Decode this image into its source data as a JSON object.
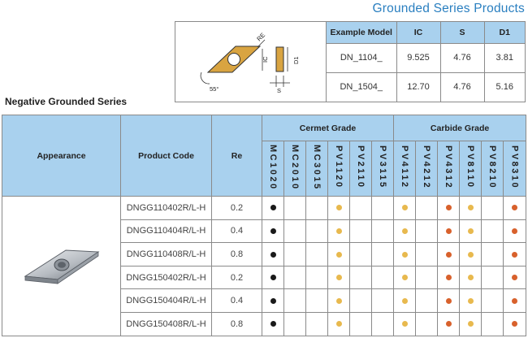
{
  "page_title": "Grounded Series Products",
  "section_heading": "Negative Grounded Series",
  "diagram": {
    "labels": [
      "RE",
      "IC",
      "D1",
      "S",
      "55°"
    ]
  },
  "spec_table": {
    "headers": [
      "Example Model",
      "IC",
      "S",
      "D1"
    ],
    "rows": [
      [
        "DN_1104_",
        "9.525",
        "4.76",
        "3.81"
      ],
      [
        "DN_1504_",
        "12.70",
        "4.76",
        "5.16"
      ]
    ]
  },
  "grade_table": {
    "headers": {
      "appearance": "Appearance",
      "product_code": "Product Code",
      "re": "Re",
      "cermet_group": "Cermet Grade",
      "carbide_group": "Carbide Grade"
    },
    "cermet_grades": [
      "MC1020",
      "MC2010",
      "MC3015",
      "PV1120",
      "PV2110",
      "PV3115"
    ],
    "carbide_grades": [
      "PV4112",
      "PV4212",
      "PV4312",
      "PV8110",
      "PV8210",
      "PV8310"
    ],
    "rows": [
      {
        "code": "DNGG110402R/L-H",
        "re": "0.2",
        "marks": [
          "black",
          "",
          "",
          "yellow",
          "",
          "",
          "yellow",
          "",
          "orange",
          "yellow",
          "",
          "orange"
        ]
      },
      {
        "code": "DNGG110404R/L-H",
        "re": "0.4",
        "marks": [
          "black",
          "",
          "",
          "yellow",
          "",
          "",
          "yellow",
          "",
          "orange",
          "yellow",
          "",
          "orange"
        ]
      },
      {
        "code": "DNGG110408R/L-H",
        "re": "0.8",
        "marks": [
          "black",
          "",
          "",
          "yellow",
          "",
          "",
          "yellow",
          "",
          "orange",
          "yellow",
          "",
          "orange"
        ]
      },
      {
        "code": "DNGG150402R/L-H",
        "re": "0.2",
        "marks": [
          "black",
          "",
          "",
          "yellow",
          "",
          "",
          "yellow",
          "",
          "orange",
          "yellow",
          "",
          "orange"
        ]
      },
      {
        "code": "DNGG150404R/L-H",
        "re": "0.4",
        "marks": [
          "black",
          "",
          "",
          "yellow",
          "",
          "",
          "yellow",
          "",
          "orange",
          "yellow",
          "",
          "orange"
        ]
      },
      {
        "code": "DNGG150408R/L-H",
        "re": "0.8",
        "marks": [
          "black",
          "",
          "",
          "yellow",
          "",
          "",
          "yellow",
          "",
          "orange",
          "yellow",
          "",
          "orange"
        ]
      }
    ]
  },
  "colors": {
    "title": "#2a7fc0",
    "header_bg": "#a9d1ee",
    "insert_gold": "#d9a441",
    "dot_black": "#1a1a1a",
    "dot_yellow": "#e8b94e",
    "dot_orange": "#d8612c"
  }
}
